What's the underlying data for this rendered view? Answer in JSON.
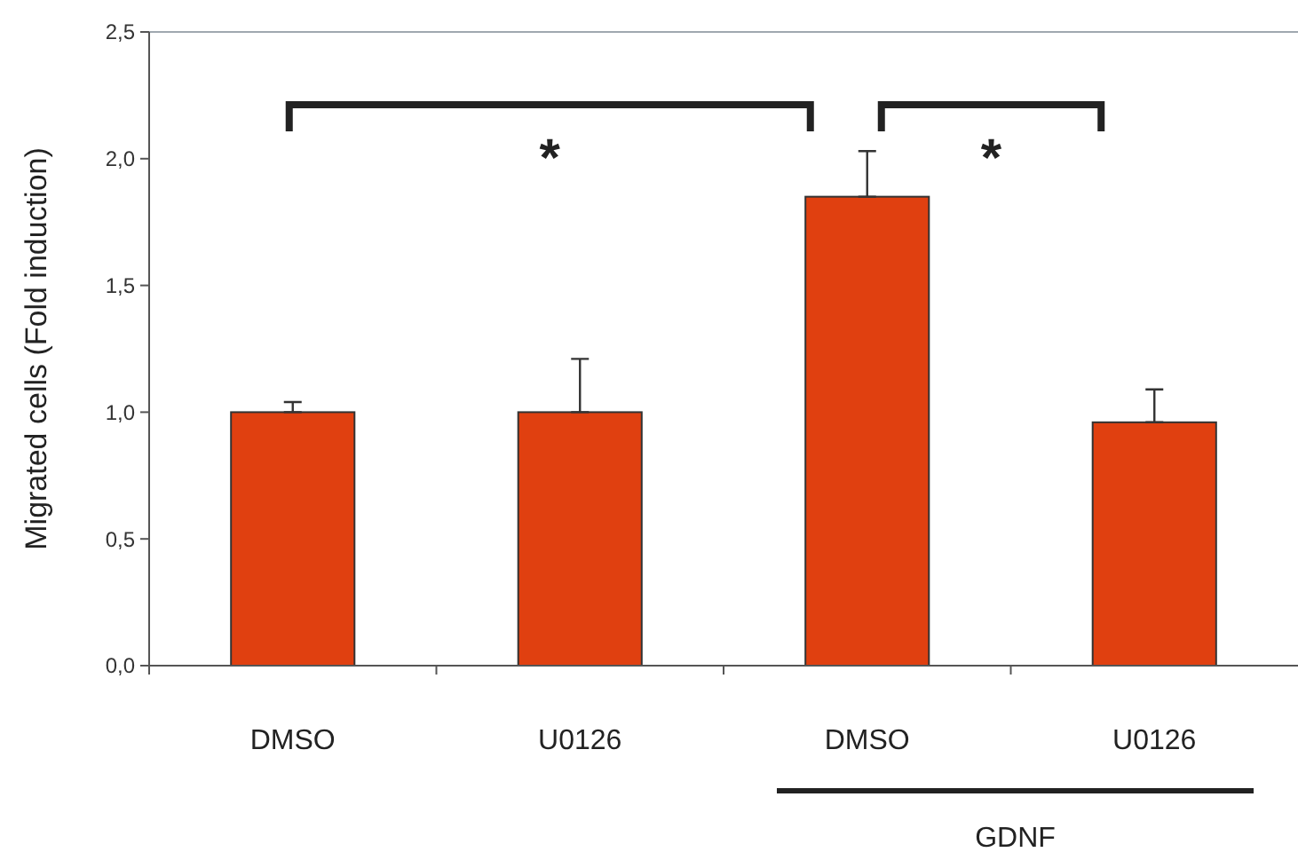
{
  "chart_data": {
    "type": "bar",
    "ylabel": "Migrated cells (Fold induction)",
    "categories": [
      "DMSO",
      "U0126",
      "DMSO",
      "U0126"
    ],
    "values": [
      1.0,
      1.0,
      1.85,
      0.96
    ],
    "errors": [
      [
        1.0,
        1.04
      ],
      [
        1.0,
        1.21
      ],
      [
        1.85,
        2.03
      ],
      [
        0.96,
        1.09
      ]
    ],
    "color": "#e04010",
    "ylim": [
      0,
      2.5
    ],
    "yticks": [
      {
        "value": 0,
        "label": "0,0"
      },
      {
        "value": 0.5,
        "label": "0,5"
      },
      {
        "value": 1,
        "label": "1,0"
      },
      {
        "value": 1.5,
        "label": "1,5"
      },
      {
        "value": 2,
        "label": "2,0"
      },
      {
        "value": 2.5,
        "label": "2,5"
      }
    ],
    "grid": false,
    "annotations": [
      "*",
      "*",
      "GDNF"
    ]
  }
}
